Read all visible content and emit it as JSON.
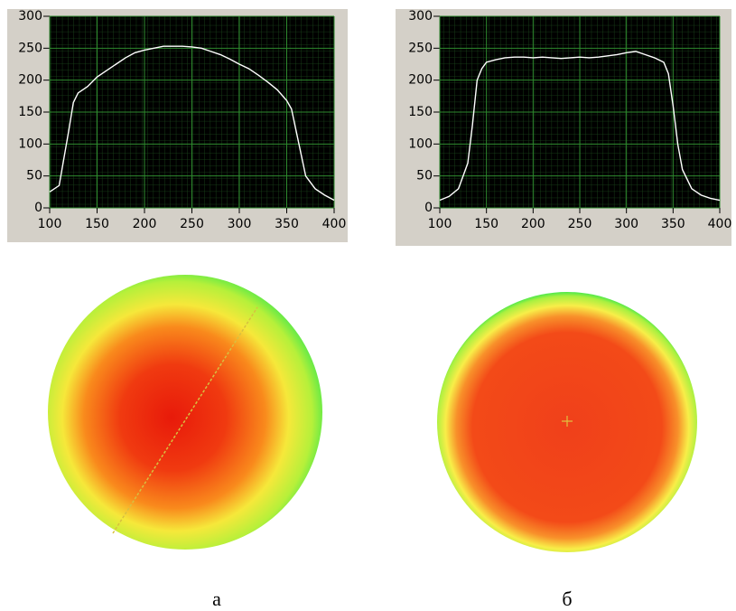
{
  "chart_data": [
    {
      "type": "line",
      "x": [
        100,
        110,
        120,
        125,
        130,
        140,
        150,
        160,
        170,
        180,
        190,
        200,
        210,
        220,
        230,
        240,
        250,
        260,
        270,
        280,
        290,
        300,
        310,
        320,
        330,
        340,
        350,
        355,
        360,
        370,
        380,
        390,
        400
      ],
      "series": [
        {
          "color": "#ffffff",
          "values": [
            25,
            35,
            120,
            165,
            180,
            190,
            205,
            215,
            225,
            235,
            243,
            247,
            250,
            253,
            253,
            253,
            252,
            250,
            245,
            240,
            233,
            225,
            218,
            208,
            197,
            185,
            168,
            155,
            120,
            50,
            30,
            20,
            12
          ]
        }
      ],
      "xlim": [
        100,
        400
      ],
      "ylim": [
        0,
        300
      ],
      "xticks": [
        100,
        150,
        200,
        250,
        300,
        350,
        400
      ],
      "yticks": [
        0,
        50,
        100,
        150,
        200,
        250,
        300
      ],
      "grid": true
    },
    {
      "type": "line",
      "x": [
        100,
        110,
        120,
        130,
        135,
        140,
        145,
        150,
        160,
        170,
        180,
        190,
        200,
        210,
        220,
        230,
        240,
        250,
        260,
        270,
        280,
        290,
        300,
        310,
        320,
        330,
        340,
        345,
        350,
        355,
        360,
        370,
        380,
        390,
        400
      ],
      "series": [
        {
          "color": "#ffffff",
          "values": [
            12,
            18,
            30,
            70,
            130,
            200,
            218,
            228,
            232,
            235,
            236,
            236,
            235,
            236,
            235,
            234,
            235,
            236,
            235,
            236,
            238,
            240,
            243,
            245,
            240,
            235,
            228,
            210,
            160,
            100,
            60,
            30,
            20,
            15,
            12
          ]
        }
      ],
      "xlim": [
        100,
        400
      ],
      "ylim": [
        0,
        300
      ],
      "xticks": [
        100,
        150,
        200,
        250,
        300,
        350,
        400
      ],
      "yticks": [
        0,
        50,
        100,
        150,
        200,
        250,
        300
      ],
      "grid": true
    }
  ],
  "captions": [
    "а",
    "б"
  ]
}
